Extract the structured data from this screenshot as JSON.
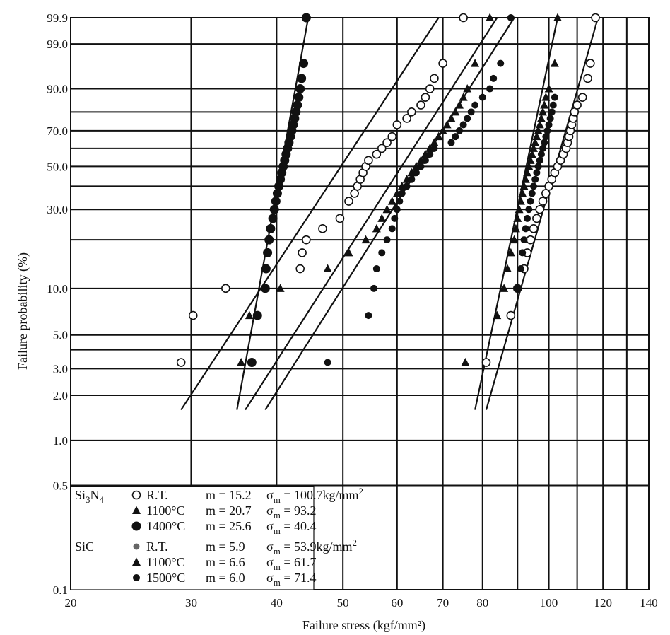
{
  "chart_data": {
    "type": "scatter",
    "title": "",
    "xlabel": "Failure stress (kgf/mm²)",
    "ylabel": "Failure probability (%)",
    "x_scale": "log",
    "y_scale": "weibull",
    "xlim": [
      20,
      140
    ],
    "ylim": [
      0.1,
      99.9
    ],
    "grid": true,
    "x_ticks": [
      20,
      30,
      40,
      50,
      60,
      70,
      80,
      100,
      120,
      140
    ],
    "x_tick_labels": [
      "20",
      "30",
      "40",
      "50",
      "60",
      "70",
      "80",
      "100",
      "120",
      "140"
    ],
    "x_minor_grid": [
      90,
      110,
      130
    ],
    "y_ticks": [
      0.1,
      0.5,
      1.0,
      2.0,
      3.0,
      5.0,
      10.0,
      30.0,
      50.0,
      70.0,
      90.0,
      99.0,
      99.9
    ],
    "y_tick_labels": [
      "0.1",
      "0.5",
      "1.0",
      "2.0",
      "3.0",
      "5.0",
      "10.0",
      "30.0",
      "50.0",
      "70.0",
      "90.0",
      "99.0",
      "99.9"
    ],
    "y_minor_grid": [
      4,
      20,
      40,
      60,
      80
    ],
    "legend": {
      "position": "bottom-left",
      "groups": [
        {
          "material": "Si",
          "sub1": "3",
          "mid": "N",
          "sub2": "4",
          "entries": [
            {
              "marker": "open-circle",
              "temp": "R.T.",
              "m": "m = 15.2",
              "sigma_value": "= 100.7kg/mm",
              "sup": "2"
            },
            {
              "marker": "triangle",
              "temp": "1100°C",
              "m": "m = 20.7",
              "sigma_value": "= 93.2",
              "sup": ""
            },
            {
              "marker": "filled-circle-large",
              "temp": "1400°C",
              "m": "m = 25.6",
              "sigma_value": "= 40.4",
              "sup": ""
            }
          ]
        },
        {
          "material": "SiC",
          "sub1": "",
          "mid": "",
          "sub2": "",
          "entries": [
            {
              "marker": "dot-gray",
              "temp": "R.T.",
              "m": "m = 5.9",
              "sigma_value": "= 53.9kg/mm",
              "sup": "2"
            },
            {
              "marker": "triangle",
              "temp": "1100°C",
              "m": "m = 6.6",
              "sigma_value": "= 61.7",
              "sup": ""
            },
            {
              "marker": "dot-small",
              "temp": "1500°C",
              "m": "m = 6.0",
              "sigma_value": "= 71.4",
              "sup": ""
            }
          ]
        }
      ]
    },
    "series": [
      {
        "marker": "open-circle",
        "points": [
          [
            29,
            3.3
          ],
          [
            30.2,
            6.7
          ],
          [
            33.7,
            10
          ],
          [
            43.3,
            13.3
          ],
          [
            43.6,
            16.7
          ],
          [
            44.2,
            20
          ],
          [
            46.7,
            23.3
          ],
          [
            49.5,
            26.7
          ],
          [
            51,
            33.3
          ],
          [
            52,
            36.7
          ],
          [
            52.5,
            40
          ],
          [
            53,
            43.3
          ],
          [
            53.5,
            46.7
          ],
          [
            54,
            50
          ],
          [
            54.5,
            53.3
          ],
          [
            56,
            56.7
          ],
          [
            57,
            60
          ],
          [
            58,
            63.3
          ],
          [
            59,
            66.7
          ],
          [
            60,
            73.3
          ],
          [
            62,
            76.7
          ],
          [
            63,
            80
          ],
          [
            65,
            83.3
          ],
          [
            66,
            86.7
          ],
          [
            67,
            90
          ],
          [
            68,
            93.3
          ],
          [
            70,
            96.7
          ],
          [
            75,
            99.9
          ],
          [
            81,
            3.3
          ],
          [
            88,
            6.7
          ],
          [
            90,
            10
          ],
          [
            92,
            13.3
          ],
          [
            93,
            16.7
          ],
          [
            94,
            20
          ],
          [
            95,
            23.3
          ],
          [
            96,
            26.7
          ],
          [
            97,
            30
          ],
          [
            98,
            33.3
          ],
          [
            99,
            36.7
          ],
          [
            100,
            40
          ],
          [
            101,
            43.3
          ],
          [
            102,
            46.7
          ],
          [
            103,
            50
          ],
          [
            104,
            53.3
          ],
          [
            105,
            56.7
          ],
          [
            106,
            60
          ],
          [
            106.5,
            63.3
          ],
          [
            107,
            66.7
          ],
          [
            107.5,
            70
          ],
          [
            108,
            73.3
          ],
          [
            108.5,
            76.7
          ],
          [
            109,
            80
          ],
          [
            110,
            83.3
          ],
          [
            112,
            86.7
          ],
          [
            114,
            93.3
          ],
          [
            115,
            96.7
          ],
          [
            117,
            99.9
          ]
        ]
      },
      {
        "marker": "triangle",
        "points": [
          [
            35.5,
            3.3
          ],
          [
            36.5,
            6.7
          ],
          [
            40.5,
            10
          ],
          [
            47.5,
            13.3
          ],
          [
            51,
            16.7
          ],
          [
            54,
            20
          ],
          [
            56,
            23.3
          ],
          [
            57,
            26.7
          ],
          [
            58,
            30
          ],
          [
            59,
            33.3
          ],
          [
            60,
            36.7
          ],
          [
            61,
            40
          ],
          [
            62,
            43.3
          ],
          [
            63,
            46.7
          ],
          [
            64,
            50
          ],
          [
            65,
            53.3
          ],
          [
            66,
            56.7
          ],
          [
            67,
            60
          ],
          [
            68,
            63.3
          ],
          [
            69,
            66.7
          ],
          [
            70,
            70
          ],
          [
            71,
            73.3
          ],
          [
            72,
            76.7
          ],
          [
            73,
            80
          ],
          [
            74,
            83.3
          ],
          [
            75,
            86.7
          ],
          [
            76,
            90
          ],
          [
            78,
            96.7
          ],
          [
            82,
            99.9
          ],
          [
            75.5,
            3.3
          ],
          [
            84,
            6.7
          ],
          [
            86,
            10
          ],
          [
            87,
            13.3
          ],
          [
            88,
            16.7
          ],
          [
            89,
            20
          ],
          [
            89.5,
            23.3
          ],
          [
            90,
            26.7
          ],
          [
            90.5,
            30
          ],
          [
            91,
            33.3
          ],
          [
            91.5,
            36.7
          ],
          [
            92,
            40
          ],
          [
            92.5,
            43.3
          ],
          [
            93,
            46.7
          ],
          [
            93.5,
            50
          ],
          [
            94,
            53.3
          ],
          [
            94.5,
            56.7
          ],
          [
            95,
            60
          ],
          [
            95.5,
            63.3
          ],
          [
            96,
            66.7
          ],
          [
            96.5,
            70
          ],
          [
            97,
            73.3
          ],
          [
            97.5,
            76.7
          ],
          [
            98,
            80
          ],
          [
            98.5,
            83.3
          ],
          [
            99,
            86.7
          ],
          [
            100,
            90
          ],
          [
            102,
            96.7
          ],
          [
            103,
            99.9
          ]
        ]
      },
      {
        "marker": "filled-circle-large",
        "points": [
          [
            36.8,
            3.3
          ],
          [
            37.5,
            6.7
          ],
          [
            38.5,
            10
          ],
          [
            38.6,
            13.3
          ],
          [
            38.8,
            16.7
          ],
          [
            39,
            20
          ],
          [
            39.2,
            23.3
          ],
          [
            39.5,
            26.7
          ],
          [
            39.7,
            30
          ],
          [
            39.9,
            33.3
          ],
          [
            40.1,
            36.7
          ],
          [
            40.3,
            40
          ],
          [
            40.5,
            43.3
          ],
          [
            40.7,
            46.7
          ],
          [
            40.9,
            50
          ],
          [
            41.1,
            53.3
          ],
          [
            41.3,
            56.7
          ],
          [
            41.5,
            60
          ],
          [
            41.7,
            63.3
          ],
          [
            41.9,
            66.7
          ],
          [
            42.1,
            70
          ],
          [
            42.3,
            73.3
          ],
          [
            42.5,
            76.7
          ],
          [
            42.7,
            80
          ],
          [
            42.9,
            83.3
          ],
          [
            43.1,
            86.7
          ],
          [
            43.3,
            90
          ],
          [
            43.5,
            93.3
          ],
          [
            43.8,
            96.7
          ],
          [
            44.2,
            99.9
          ]
        ]
      },
      {
        "marker": "dot-small",
        "points": [
          [
            47.5,
            3.3
          ],
          [
            54.5,
            6.7
          ],
          [
            55.5,
            10
          ],
          [
            56,
            13.3
          ],
          [
            57,
            16.7
          ],
          [
            58,
            20
          ],
          [
            59,
            23.3
          ],
          [
            59.5,
            26.7
          ],
          [
            60,
            30
          ],
          [
            60.5,
            33.3
          ],
          [
            61,
            36.7
          ],
          [
            62,
            40
          ],
          [
            63,
            43.3
          ],
          [
            64,
            46.7
          ],
          [
            65,
            50
          ],
          [
            66,
            53.3
          ],
          [
            67,
            56.7
          ],
          [
            68,
            60
          ],
          [
            72,
            63.3
          ],
          [
            73,
            66.7
          ],
          [
            74,
            70
          ],
          [
            75,
            73.3
          ],
          [
            76,
            76.7
          ],
          [
            77,
            80
          ],
          [
            78,
            83.3
          ],
          [
            80,
            86.7
          ],
          [
            82,
            90
          ],
          [
            83,
            93.3
          ],
          [
            85,
            96.7
          ],
          [
            88,
            99.9
          ],
          [
            90,
            10
          ],
          [
            91,
            13.3
          ],
          [
            91.5,
            16.7
          ],
          [
            92,
            20
          ],
          [
            92.5,
            23.3
          ],
          [
            93,
            26.7
          ],
          [
            93.5,
            30
          ],
          [
            94,
            33.3
          ],
          [
            94.5,
            36.7
          ],
          [
            95,
            40
          ],
          [
            95.5,
            43.3
          ],
          [
            96,
            46.7
          ],
          [
            96.5,
            50
          ],
          [
            97,
            53.3
          ],
          [
            97.5,
            56.7
          ],
          [
            98,
            60
          ],
          [
            98.5,
            63.3
          ],
          [
            99,
            66.7
          ],
          [
            99.5,
            70
          ],
          [
            100,
            73.3
          ],
          [
            100.5,
            76.7
          ],
          [
            101,
            80
          ],
          [
            101.5,
            83.3
          ],
          [
            102,
            86.7
          ]
        ]
      }
    ],
    "fit_lines": [
      [
        [
          29,
          1.6
        ],
        [
          69,
          99.9
        ]
      ],
      [
        [
          35,
          1.6
        ],
        [
          44.5,
          99.9
        ]
      ],
      [
        [
          36,
          1.6
        ],
        [
          84,
          99.9
        ]
      ],
      [
        [
          38.5,
          1.6
        ],
        [
          89,
          99.9
        ]
      ],
      [
        [
          78,
          1.6
        ],
        [
          103,
          99.9
        ]
      ],
      [
        [
          81,
          1.6
        ],
        [
          118,
          99.9
        ]
      ]
    ]
  }
}
